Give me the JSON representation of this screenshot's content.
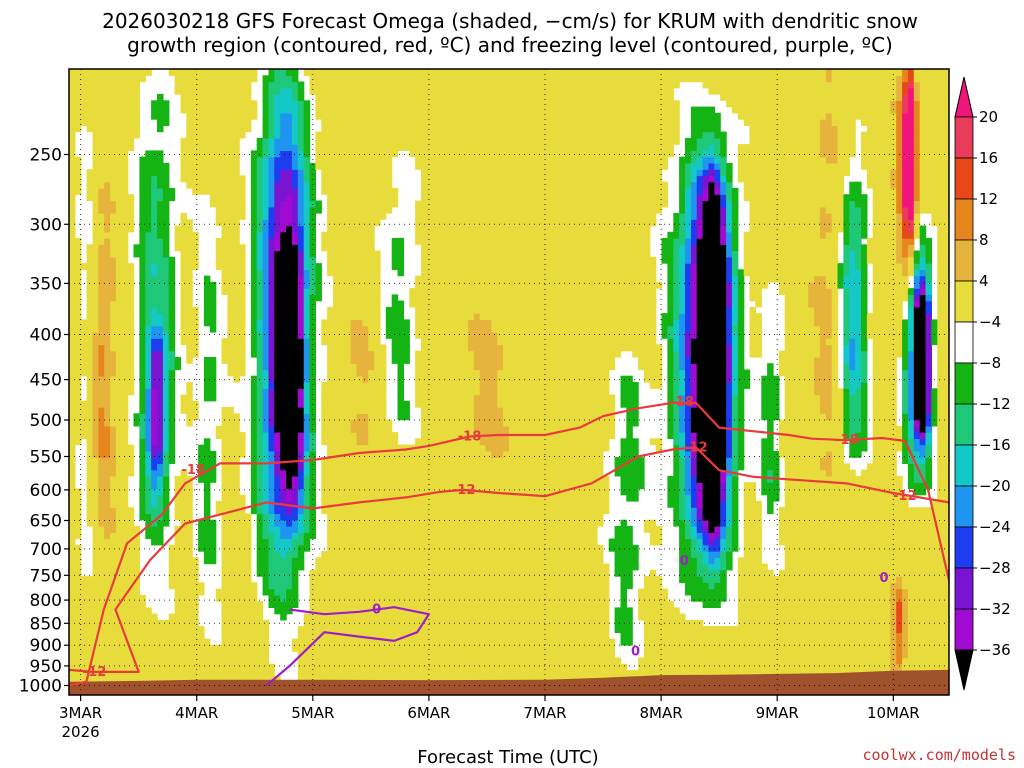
{
  "chart_data": {
    "type": "heatmap",
    "title_lines": [
      "2026030218 GFS Forecast Omega (shaded, −cm/s) for KRUM with dendritic snow",
      "growth region (contoured, red, ºC) and freezing level (contoured, purple, ºC)"
    ],
    "xlabel": "Forecast Time (UTC)",
    "ylabel": "",
    "credit": "coolwx.com/models",
    "x_axis": {
      "unit": "days since 2026-03-03 00Z",
      "range": [
        -0.1,
        7.48
      ],
      "ticks": [
        {
          "value": 0,
          "label": "3MAR",
          "sublabel": "2026"
        },
        {
          "value": 1,
          "label": "4MAR"
        },
        {
          "value": 2,
          "label": "5MAR"
        },
        {
          "value": 3,
          "label": "6MAR"
        },
        {
          "value": 4,
          "label": "7MAR"
        },
        {
          "value": 5,
          "label": "8MAR"
        },
        {
          "value": 6,
          "label": "9MAR"
        },
        {
          "value": 7,
          "label": "10MAR"
        }
      ]
    },
    "y_axis": {
      "unit": "hPa",
      "scale": "log",
      "range": [
        1025,
        200
      ],
      "inverted": true,
      "ticks": [
        250,
        300,
        350,
        400,
        450,
        500,
        550,
        600,
        650,
        700,
        750,
        800,
        850,
        900,
        950,
        1000
      ]
    },
    "colorbar": {
      "levels": [
        20,
        16,
        12,
        8,
        4,
        -4,
        -8,
        -12,
        -16,
        -20,
        -24,
        -28,
        -32,
        -36
      ],
      "colors": [
        "#e83c5a",
        "#e84818",
        "#e8861e",
        "#e6b43c",
        "#e8dc3c",
        "#ffffff",
        "#14b414",
        "#1ec878",
        "#14c8c8",
        "#1e96f0",
        "#1e3cf0",
        "#7814d2",
        "#a00ad2",
        "#a0a0a0",
        "#000000"
      ],
      "top_color": "#f0147c"
    },
    "omega_features": [
      {
        "x_center": 0.15,
        "x_width": 0.35,
        "p_top": 280,
        "p_bottom": 690,
        "value": 10
      },
      {
        "x_center": 0.05,
        "x_width": 0.22,
        "p_top": 220,
        "p_bottom": 850,
        "value": -10
      },
      {
        "x_center": 0.65,
        "x_width": 0.45,
        "p_top": 200,
        "p_bottom": 760,
        "value": -14
      },
      {
        "x_center": 0.65,
        "x_width": 0.18,
        "p_top": 400,
        "p_bottom": 600,
        "value": -22
      },
      {
        "x_center": 1.1,
        "x_width": 0.3,
        "p_top": 280,
        "p_bottom": 900,
        "value": -9
      },
      {
        "x_center": 1.75,
        "x_width": 0.65,
        "p_top": 200,
        "p_bottom": 800,
        "value": -16
      },
      {
        "x_center": 1.75,
        "x_width": 0.42,
        "p_top": 220,
        "p_bottom": 690,
        "value": -21
      },
      {
        "x_center": 1.82,
        "x_width": 0.22,
        "p_top": 320,
        "p_bottom": 600,
        "value": -25
      },
      {
        "x_center": 2.4,
        "x_width": 0.35,
        "p_top": 340,
        "p_bottom": 640,
        "value": 5
      },
      {
        "x_center": 2.75,
        "x_width": 0.4,
        "p_top": 250,
        "p_bottom": 550,
        "value": -9
      },
      {
        "x_center": 3.5,
        "x_width": 0.5,
        "p_top": 350,
        "p_bottom": 600,
        "value": 5
      },
      {
        "x_center": 4.7,
        "x_width": 0.4,
        "p_top": 420,
        "p_bottom": 960,
        "value": -10
      },
      {
        "x_center": 5.35,
        "x_width": 0.75,
        "p_top": 240,
        "p_bottom": 760,
        "value": -15
      },
      {
        "x_center": 5.4,
        "x_width": 0.48,
        "p_top": 260,
        "p_bottom": 700,
        "value": -24
      },
      {
        "x_center": 5.45,
        "x_width": 0.26,
        "p_top": 280,
        "p_bottom": 640,
        "value": -30
      },
      {
        "x_center": 5.45,
        "x_width": 0.1,
        "p_top": 300,
        "p_bottom": 610,
        "value": -40
      },
      {
        "x_center": 5.95,
        "x_width": 0.25,
        "p_top": 350,
        "p_bottom": 720,
        "value": -10
      },
      {
        "x_center": 6.45,
        "x_width": 0.35,
        "p_top": 200,
        "p_bottom": 700,
        "value": 6
      },
      {
        "x_center": 6.65,
        "x_width": 0.3,
        "p_top": 260,
        "p_bottom": 560,
        "value": -20
      },
      {
        "x_center": 7.1,
        "x_width": 0.18,
        "p_top": 200,
        "p_bottom": 400,
        "value": 14
      },
      {
        "x_center": 7.15,
        "x_width": 0.12,
        "p_top": 200,
        "p_bottom": 320,
        "value": 24
      },
      {
        "x_center": 7.2,
        "x_width": 0.32,
        "p_top": 300,
        "p_bottom": 600,
        "value": -22
      },
      {
        "x_center": 7.25,
        "x_width": 0.14,
        "p_top": 350,
        "p_bottom": 520,
        "value": -40
      },
      {
        "x_center": 7.05,
        "x_width": 0.15,
        "p_top": 760,
        "p_bottom": 950,
        "value": 14
      }
    ],
    "surface_terrain": {
      "color": "#a0522d",
      "x": [
        -0.1,
        0.5,
        1.0,
        2.0,
        3.0,
        4.0,
        4.5,
        5.0,
        5.5,
        6.0,
        6.5,
        7.0,
        7.48
      ],
      "p_surface": [
        990,
        988,
        985,
        985,
        986,
        985,
        980,
        973,
        972,
        970,
        968,
        962,
        960
      ]
    },
    "contours": [
      {
        "name": "dendritic -18C",
        "color": "#e83c3c",
        "level_label": "-18",
        "label_positions": [
          {
            "x": 0.97,
            "p": 570
          },
          {
            "x": 3.35,
            "p": 522
          },
          {
            "x": 5.18,
            "p": 477
          },
          {
            "x": 6.6,
            "p": 527
          }
        ],
        "x": [
          -0.1,
          0.05,
          0.2,
          0.4,
          0.7,
          0.9,
          1.2,
          1.6,
          2.0,
          2.4,
          2.8,
          3.0,
          3.35,
          3.6,
          4.0,
          4.3,
          4.5,
          4.8,
          5.1,
          5.3,
          5.5,
          5.8,
          6.1,
          6.3,
          6.6,
          6.9,
          7.1,
          7.3,
          7.48
        ],
        "p": [
          1000,
          990,
          820,
          690,
          640,
          590,
          560,
          560,
          555,
          545,
          540,
          535,
          522,
          520,
          520,
          510,
          495,
          485,
          478,
          478,
          510,
          515,
          520,
          525,
          527,
          524,
          528,
          600,
          760
        ]
      },
      {
        "name": "dendritic -12C",
        "color": "#e83c3c",
        "level_label": "-12",
        "label_positions": [
          {
            "x": 0.12,
            "p": 965
          },
          {
            "x": 3.3,
            "p": 600
          },
          {
            "x": 5.3,
            "p": 537
          },
          {
            "x": 7.1,
            "p": 610
          }
        ],
        "x": [
          -0.1,
          0.1,
          0.5,
          0.3,
          0.6,
          0.9,
          1.2,
          1.6,
          2.0,
          2.4,
          2.8,
          3.1,
          3.3,
          3.6,
          4.0,
          4.4,
          4.6,
          4.8,
          5.1,
          5.3,
          5.5,
          5.8,
          6.2,
          6.6,
          7.0,
          7.48
        ],
        "p": [
          960,
          965,
          965,
          820,
          720,
          655,
          640,
          620,
          630,
          620,
          612,
          603,
          600,
          605,
          610,
          590,
          570,
          550,
          540,
          537,
          570,
          580,
          585,
          590,
          605,
          620
        ]
      },
      {
        "name": "freezing level 0C",
        "color": "#a01ec8",
        "level_label": "0",
        "label_positions": [
          {
            "x": 2.55,
            "p": 820
          },
          {
            "x": 4.78,
            "p": 915
          },
          {
            "x": 5.2,
            "p": 722
          },
          {
            "x": 6.92,
            "p": 755
          }
        ],
        "x": [
          1.8,
          2.1,
          2.4,
          2.7,
          3.0,
          2.9,
          2.7,
          2.4,
          2.1,
          1.8,
          1.6
        ],
        "p": [
          820,
          830,
          825,
          815,
          830,
          870,
          890,
          880,
          870,
          950,
          1000
        ]
      }
    ]
  }
}
